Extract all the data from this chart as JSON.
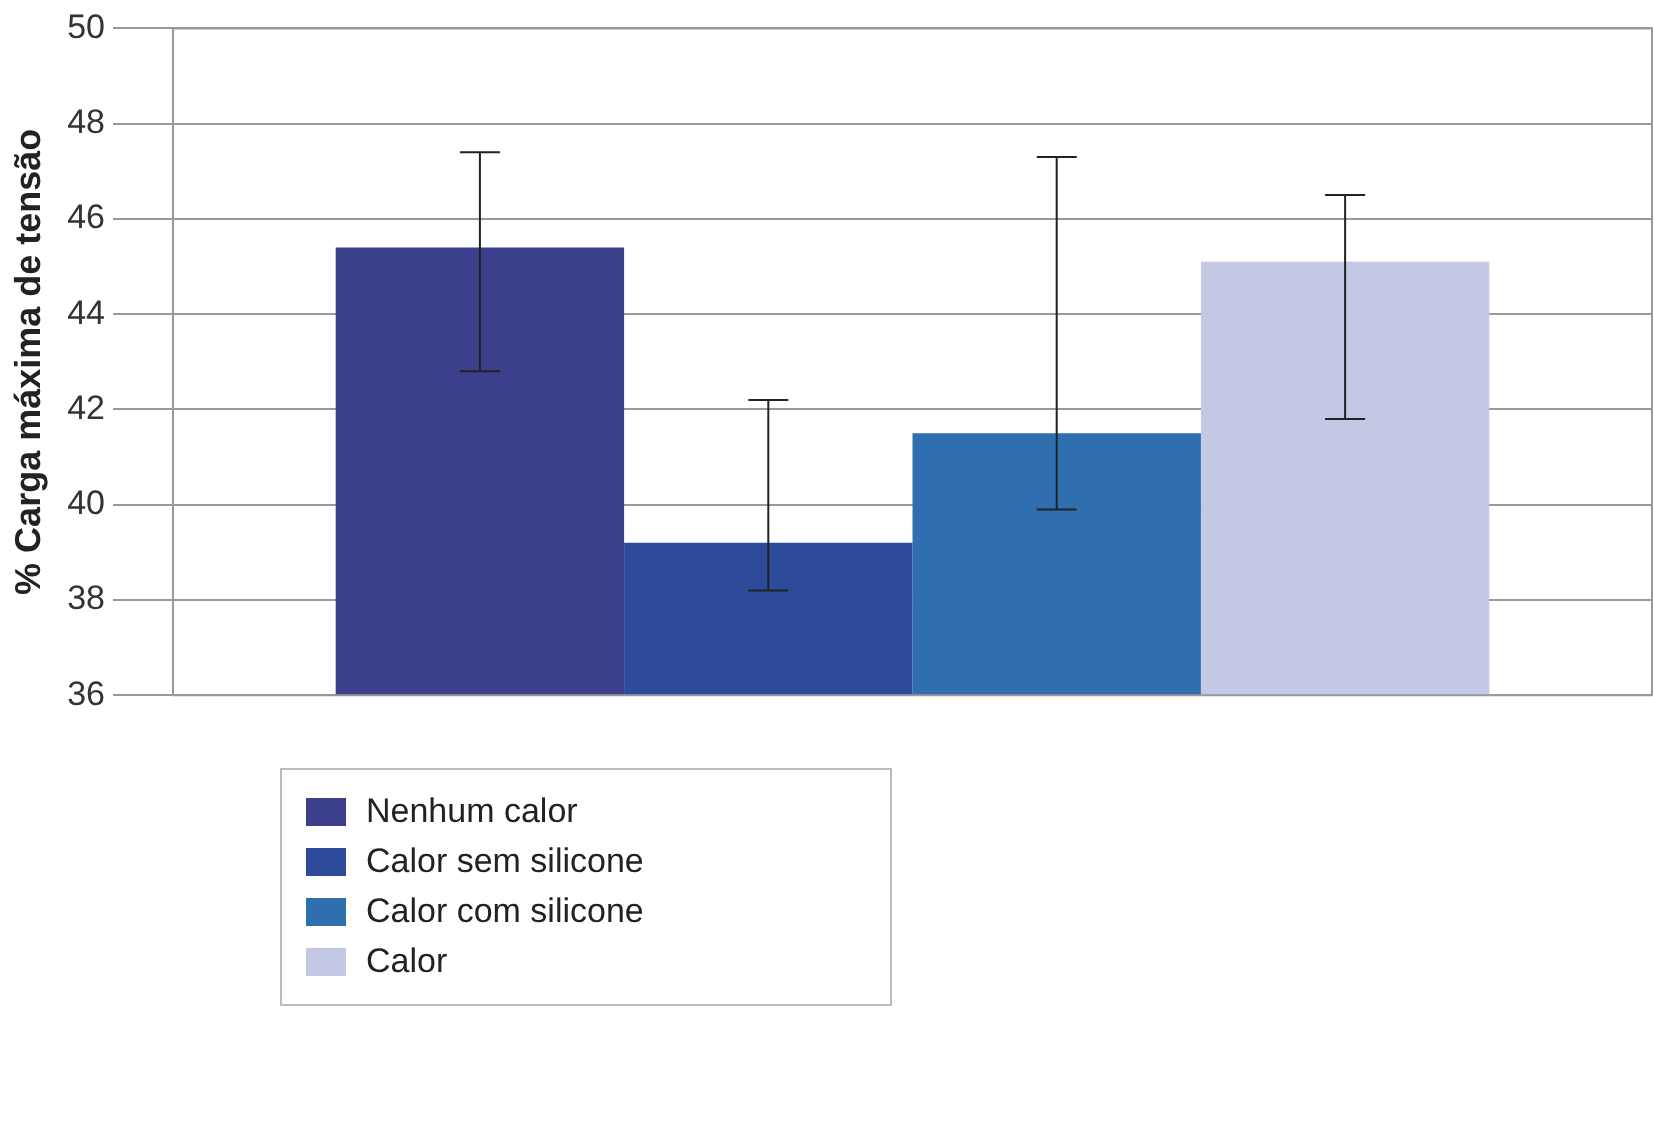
{
  "chart_data": {
    "type": "bar",
    "ylabel": "% Carga máxima de tensão",
    "categories": [
      null
    ],
    "series": [
      {
        "name": "Nenhum calor",
        "color": "#3b3f8c",
        "values": [
          45.4
        ],
        "errors": [
          [
            42.8,
            47.4
          ]
        ]
      },
      {
        "name": "Calor sem silicone",
        "color": "#2e4a9a",
        "values": [
          39.2
        ],
        "errors": [
          [
            38.2,
            42.2
          ]
        ]
      },
      {
        "name": "Calor com silicone",
        "color": "#2f6fb0",
        "values": [
          41.5
        ],
        "errors": [
          [
            39.9,
            47.3
          ]
        ]
      },
      {
        "name": "Calor",
        "color": "#c3c8e4",
        "values": [
          45.1
        ],
        "errors": [
          [
            41.8,
            46.5
          ]
        ]
      }
    ],
    "ylim": [
      36,
      50
    ],
    "yticks": [
      36,
      38,
      40,
      42,
      44,
      46,
      48,
      50
    ],
    "grid": "y",
    "legend": "bottom left"
  }
}
